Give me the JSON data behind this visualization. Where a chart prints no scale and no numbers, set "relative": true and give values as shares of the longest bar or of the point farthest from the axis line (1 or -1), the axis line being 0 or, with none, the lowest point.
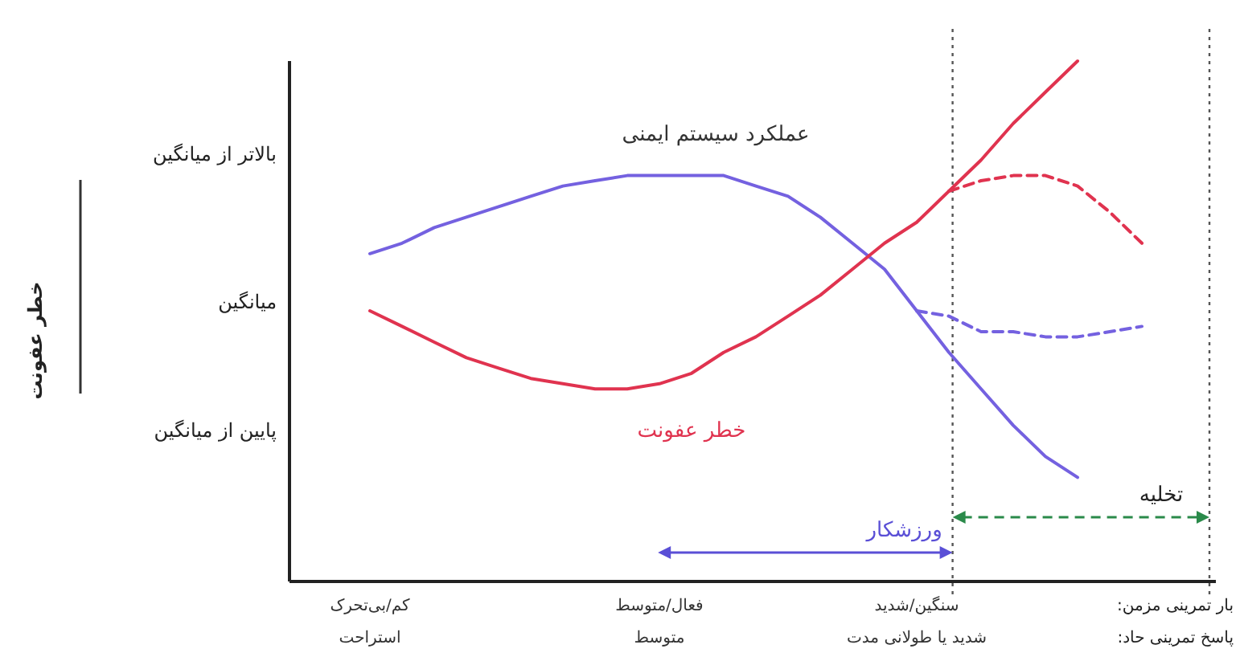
{
  "chart_data": {
    "type": "line",
    "relative": true,
    "categories": [
      "کم/بی‌تحرک\nاستراحت",
      null,
      null,
      null,
      null,
      null,
      null,
      null,
      null,
      "فعال/متوسط\nمتوسط",
      null,
      null,
      null,
      null,
      null,
      null,
      null,
      "سنگین/شدید\nشدید یا طولانی مدت",
      null,
      null,
      null,
      null,
      null,
      null,
      null,
      null,
      null
    ],
    "series": [
      {
        "name": "عملکرد سیستم ایمنی",
        "color": "#7461e0",
        "line_style": "solid",
        "values": [
          0.63,
          0.65,
          0.68,
          0.7,
          0.72,
          0.74,
          0.76,
          0.77,
          0.78,
          0.78,
          0.78,
          0.78,
          0.76,
          0.74,
          0.7,
          0.65,
          0.6,
          0.52,
          0.44,
          0.37,
          0.3,
          0.24,
          0.2,
          null,
          null,
          null,
          null
        ]
      },
      {
        "name": "خطر عفونت",
        "color": "#e0334f",
        "line_style": "solid",
        "values": [
          0.52,
          0.49,
          0.46,
          0.43,
          0.41,
          0.39,
          0.38,
          0.37,
          0.37,
          0.38,
          0.4,
          0.44,
          0.47,
          0.51,
          0.55,
          0.6,
          0.65,
          0.69,
          0.75,
          0.81,
          0.88,
          0.94,
          1.0,
          null,
          null,
          null,
          null
        ]
      },
      {
        "color": "#e0334f",
        "line_style": "dashed",
        "values": [
          null,
          null,
          null,
          null,
          null,
          null,
          null,
          null,
          null,
          null,
          null,
          null,
          null,
          null,
          null,
          null,
          null,
          null,
          0.75,
          0.77,
          0.78,
          0.78,
          0.76,
          0.71,
          0.65,
          null,
          null
        ]
      },
      {
        "color": "#7461e0",
        "line_style": "dashed",
        "values": [
          null,
          null,
          null,
          null,
          null,
          null,
          null,
          null,
          null,
          null,
          null,
          null,
          null,
          null,
          null,
          null,
          null,
          0.52,
          0.51,
          0.48,
          0.48,
          0.47,
          0.47,
          0.48,
          0.49,
          null,
          null
        ]
      }
    ],
    "annotations": [
      "خطر عفونت",
      "بالاتر از میانگین",
      "میانگین",
      "پایین از میانگین",
      "ورزشکار",
      "تخلیه",
      "بار تمرینی مزمن:",
      "پاسخ تمرینی حاد:"
    ]
  }
}
